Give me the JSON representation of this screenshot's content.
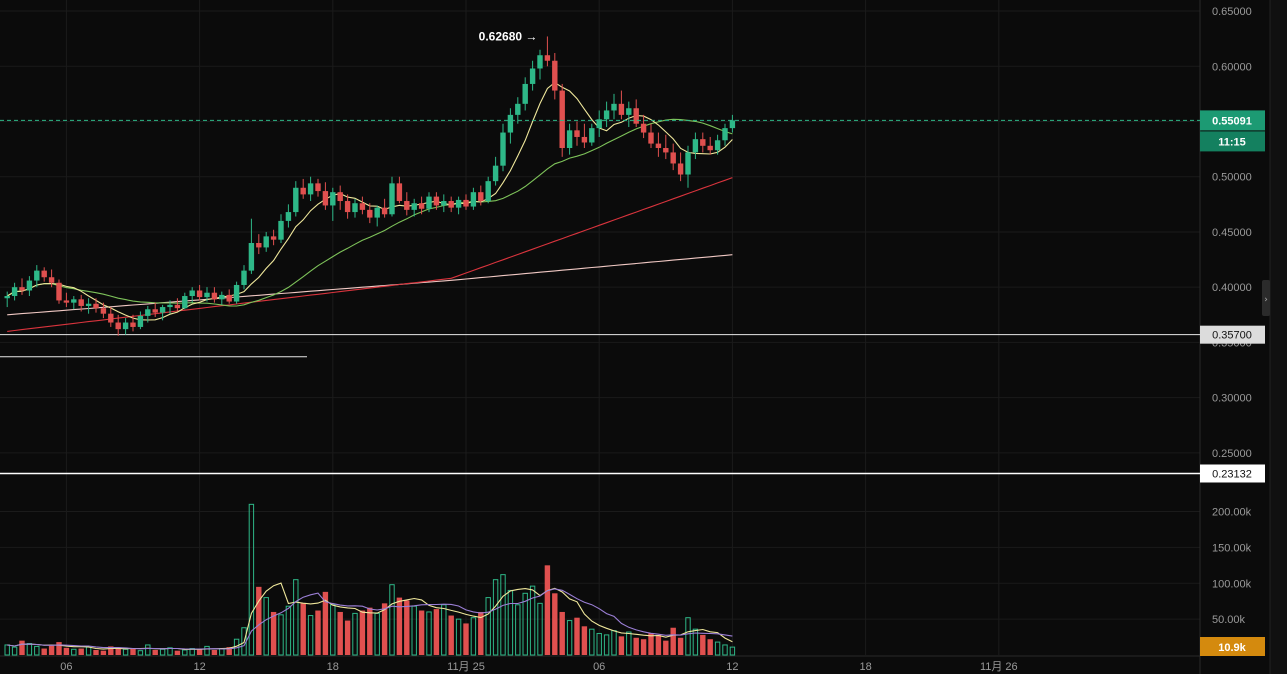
{
  "chart_data": {
    "type": "candlestick",
    "price_axis": {
      "ticks": [
        "0.65000",
        "0.60000",
        "0.55000",
        "0.50000",
        "0.45000",
        "0.40000",
        "0.35000",
        "0.30000",
        "0.25000"
      ],
      "tick_values": [
        0.65,
        0.6,
        0.55,
        0.5,
        0.45,
        0.4,
        0.35,
        0.3,
        0.25
      ],
      "range": [
        0.22,
        0.66
      ]
    },
    "time_axis": {
      "labels": [
        "06",
        "12",
        "18",
        "11月 25",
        "06",
        "12",
        "18",
        "11月 26"
      ],
      "label_bars": [
        8,
        26,
        44,
        62,
        80,
        98,
        116,
        134
      ]
    },
    "current_price": "0.55091",
    "countdown": "11:15",
    "high_marker": "0.62680",
    "horizontal_lines": [
      {
        "label": "0.35700",
        "value": 0.357
      },
      {
        "label": "0.23132",
        "value": 0.23132
      }
    ],
    "volume_axis": {
      "ticks": [
        "200.00k",
        "150.00k",
        "100.00k",
        "50.00k"
      ],
      "tick_values": [
        200000,
        150000,
        100000,
        50000
      ],
      "range": [
        0,
        230000
      ]
    },
    "current_volume": "10.9k",
    "ma_lines": [
      "MA7",
      "MA25",
      "MA99",
      "MA200"
    ],
    "colors": {
      "up": "#2eb888",
      "down": "#e0504f",
      "ma7": "#efe79b",
      "ma25": "#7ec35a",
      "ma99": "#d9343d",
      "ma200": "#f1c9c4",
      "price_tag_bg": "#1c9a73",
      "volume_tag_bg": "#d48a0e"
    },
    "ohlc": [
      [
        0.39,
        0.396,
        0.382,
        0.392
      ],
      [
        0.392,
        0.404,
        0.388,
        0.4
      ],
      [
        0.4,
        0.408,
        0.393,
        0.397
      ],
      [
        0.397,
        0.41,
        0.392,
        0.406
      ],
      [
        0.406,
        0.42,
        0.4,
        0.415
      ],
      [
        0.415,
        0.418,
        0.405,
        0.409
      ],
      [
        0.409,
        0.416,
        0.4,
        0.404
      ],
      [
        0.404,
        0.407,
        0.385,
        0.388
      ],
      [
        0.388,
        0.395,
        0.382,
        0.386
      ],
      [
        0.386,
        0.392,
        0.38,
        0.389
      ],
      [
        0.389,
        0.393,
        0.378,
        0.383
      ],
      [
        0.383,
        0.39,
        0.376,
        0.385
      ],
      [
        0.385,
        0.39,
        0.377,
        0.381
      ],
      [
        0.381,
        0.386,
        0.372,
        0.376
      ],
      [
        0.376,
        0.382,
        0.364,
        0.368
      ],
      [
        0.368,
        0.375,
        0.356,
        0.362
      ],
      [
        0.362,
        0.372,
        0.357,
        0.368
      ],
      [
        0.368,
        0.375,
        0.36,
        0.364
      ],
      [
        0.364,
        0.378,
        0.362,
        0.374
      ],
      [
        0.374,
        0.383,
        0.368,
        0.38
      ],
      [
        0.38,
        0.386,
        0.373,
        0.377
      ],
      [
        0.377,
        0.384,
        0.37,
        0.382
      ],
      [
        0.382,
        0.388,
        0.376,
        0.384
      ],
      [
        0.384,
        0.39,
        0.378,
        0.381
      ],
      [
        0.381,
        0.395,
        0.38,
        0.392
      ],
      [
        0.392,
        0.4,
        0.386,
        0.397
      ],
      [
        0.397,
        0.402,
        0.388,
        0.391
      ],
      [
        0.391,
        0.4,
        0.387,
        0.395
      ],
      [
        0.395,
        0.4,
        0.386,
        0.389
      ],
      [
        0.389,
        0.396,
        0.384,
        0.393
      ],
      [
        0.393,
        0.398,
        0.385,
        0.387
      ],
      [
        0.387,
        0.405,
        0.385,
        0.402
      ],
      [
        0.402,
        0.42,
        0.398,
        0.415
      ],
      [
        0.415,
        0.462,
        0.412,
        0.44
      ],
      [
        0.44,
        0.448,
        0.43,
        0.436
      ],
      [
        0.436,
        0.45,
        0.432,
        0.446
      ],
      [
        0.446,
        0.452,
        0.438,
        0.443
      ],
      [
        0.443,
        0.466,
        0.44,
        0.46
      ],
      [
        0.46,
        0.475,
        0.454,
        0.468
      ],
      [
        0.468,
        0.496,
        0.464,
        0.49
      ],
      [
        0.49,
        0.498,
        0.48,
        0.484
      ],
      [
        0.484,
        0.5,
        0.478,
        0.494
      ],
      [
        0.494,
        0.498,
        0.482,
        0.487
      ],
      [
        0.487,
        0.495,
        0.47,
        0.474
      ],
      [
        0.474,
        0.49,
        0.46,
        0.486
      ],
      [
        0.486,
        0.492,
        0.47,
        0.478
      ],
      [
        0.478,
        0.484,
        0.462,
        0.468
      ],
      [
        0.468,
        0.48,
        0.463,
        0.476
      ],
      [
        0.476,
        0.482,
        0.466,
        0.47
      ],
      [
        0.47,
        0.476,
        0.458,
        0.463
      ],
      [
        0.463,
        0.474,
        0.455,
        0.472
      ],
      [
        0.472,
        0.48,
        0.463,
        0.466
      ],
      [
        0.466,
        0.5,
        0.464,
        0.494
      ],
      [
        0.494,
        0.5,
        0.476,
        0.478
      ],
      [
        0.478,
        0.486,
        0.465,
        0.47
      ],
      [
        0.47,
        0.48,
        0.464,
        0.476
      ],
      [
        0.476,
        0.482,
        0.466,
        0.471
      ],
      [
        0.471,
        0.486,
        0.468,
        0.482
      ],
      [
        0.482,
        0.486,
        0.47,
        0.474
      ],
      [
        0.474,
        0.484,
        0.468,
        0.478
      ],
      [
        0.478,
        0.482,
        0.468,
        0.472
      ],
      [
        0.472,
        0.482,
        0.466,
        0.479
      ],
      [
        0.479,
        0.484,
        0.47,
        0.473
      ],
      [
        0.473,
        0.49,
        0.47,
        0.486
      ],
      [
        0.486,
        0.492,
        0.474,
        0.478
      ],
      [
        0.478,
        0.5,
        0.476,
        0.496
      ],
      [
        0.496,
        0.518,
        0.492,
        0.51
      ],
      [
        0.51,
        0.548,
        0.505,
        0.54
      ],
      [
        0.54,
        0.562,
        0.53,
        0.556
      ],
      [
        0.556,
        0.572,
        0.548,
        0.566
      ],
      [
        0.566,
        0.59,
        0.56,
        0.584
      ],
      [
        0.584,
        0.605,
        0.578,
        0.598
      ],
      [
        0.598,
        0.615,
        0.588,
        0.61
      ],
      [
        0.61,
        0.627,
        0.6,
        0.605
      ],
      [
        0.605,
        0.612,
        0.57,
        0.578
      ],
      [
        0.578,
        0.584,
        0.518,
        0.526
      ],
      [
        0.526,
        0.548,
        0.52,
        0.542
      ],
      [
        0.542,
        0.55,
        0.528,
        0.536
      ],
      [
        0.536,
        0.548,
        0.526,
        0.531
      ],
      [
        0.531,
        0.548,
        0.528,
        0.544
      ],
      [
        0.544,
        0.56,
        0.536,
        0.552
      ],
      [
        0.552,
        0.568,
        0.545,
        0.56
      ],
      [
        0.56,
        0.575,
        0.552,
        0.566
      ],
      [
        0.566,
        0.578,
        0.552,
        0.556
      ],
      [
        0.556,
        0.568,
        0.545,
        0.562
      ],
      [
        0.562,
        0.57,
        0.545,
        0.548
      ],
      [
        0.548,
        0.556,
        0.535,
        0.54
      ],
      [
        0.54,
        0.548,
        0.526,
        0.53
      ],
      [
        0.53,
        0.54,
        0.518,
        0.526
      ],
      [
        0.526,
        0.538,
        0.516,
        0.522
      ],
      [
        0.522,
        0.53,
        0.506,
        0.512
      ],
      [
        0.512,
        0.522,
        0.496,
        0.502
      ],
      [
        0.502,
        0.528,
        0.49,
        0.522
      ],
      [
        0.522,
        0.54,
        0.516,
        0.534
      ],
      [
        0.534,
        0.54,
        0.522,
        0.528
      ],
      [
        0.528,
        0.536,
        0.52,
        0.524
      ],
      [
        0.524,
        0.538,
        0.52,
        0.533
      ],
      [
        0.533,
        0.548,
        0.528,
        0.544
      ],
      [
        0.544,
        0.556,
        0.54,
        0.551
      ]
    ],
    "volumes": [
      14000,
      11000,
      20000,
      16000,
      12000,
      9000,
      13000,
      18000,
      10000,
      8000,
      9000,
      11000,
      7000,
      6000,
      12000,
      10000,
      8000,
      9000,
      6000,
      14000,
      7000,
      8000,
      10000,
      6000,
      7000,
      9000,
      8000,
      12000,
      7000,
      9000,
      11000,
      22000,
      38000,
      210000,
      95000,
      80000,
      60000,
      56000,
      68000,
      105000,
      72000,
      55000,
      62000,
      88000,
      70000,
      60000,
      48000,
      58000,
      62000,
      66000,
      58000,
      72000,
      98000,
      80000,
      76000,
      68000,
      62000,
      60000,
      64000,
      70000,
      55000,
      50000,
      44000,
      52000,
      60000,
      80000,
      105000,
      112000,
      90000,
      70000,
      86000,
      96000,
      72000,
      125000,
      86000,
      60000,
      48000,
      52000,
      40000,
      36000,
      30000,
      28000,
      34000,
      26000,
      32000,
      24000,
      22000,
      30000,
      28000,
      20000,
      38000,
      24000,
      52000,
      36000,
      28000,
      22000,
      18000,
      14000,
      11000
    ]
  }
}
